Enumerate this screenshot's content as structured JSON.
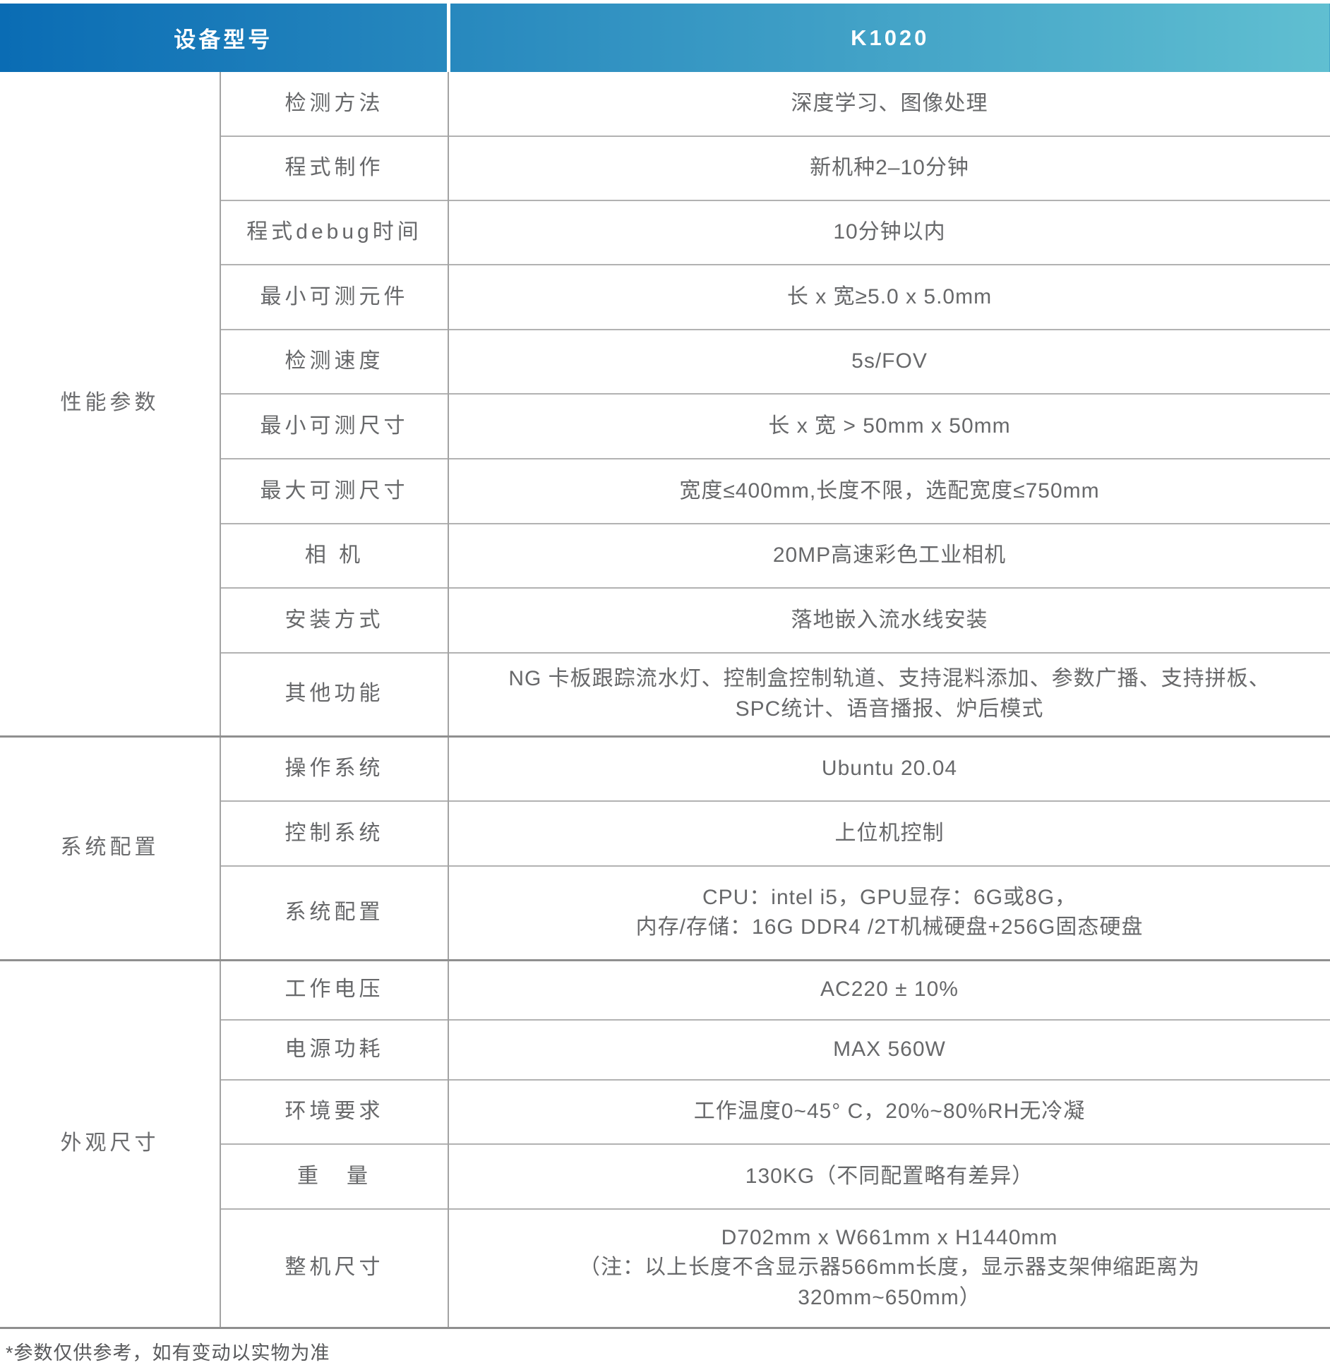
{
  "header": {
    "device_model_label": "设备型号",
    "device_model_value": "K1020"
  },
  "groups": [
    {
      "label": "性能参数",
      "rows": [
        {
          "param": "检测方法",
          "value": "深度学习、图像处理"
        },
        {
          "param": "程式制作",
          "value": "新机种2–10分钟"
        },
        {
          "param": "程式debug时间",
          "value": "10分钟以内"
        },
        {
          "param": "最小可测元件",
          "value": "长 x 宽≥5.0 x 5.0mm"
        },
        {
          "param": "检测速度",
          "value": "5s/FOV"
        },
        {
          "param": "最小可测尺寸",
          "value": "长 x 宽 > 50mm x 50mm"
        },
        {
          "param": "最大可测尺寸",
          "value": "宽度≤400mm,长度不限，选配宽度≤750mm"
        },
        {
          "param": "相 机",
          "value": "20MP高速彩色工业相机"
        },
        {
          "param": "安装方式",
          "value": "落地嵌入流水线安装"
        },
        {
          "param": "其他功能",
          "value": "NG 卡板跟踪流水灯、控制盒控制轨道、支持混料添加、参数广播、支持拼板、\nSPC统计、语音播报、炉后模式"
        }
      ]
    },
    {
      "label": "系统配置",
      "rows": [
        {
          "param": "操作系统",
          "value": "Ubuntu 20.04"
        },
        {
          "param": "控制系统",
          "value": "上位机控制"
        },
        {
          "param": "系统配置",
          "value": "CPU：intel i5，GPU显存：6G或8G，\n内存/存储：16G DDR4 /2T机械硬盘+256G固态硬盘"
        }
      ]
    },
    {
      "label": "外观尺寸",
      "rows": [
        {
          "param": "工作电压",
          "value": "AC220 ± 10%"
        },
        {
          "param": "电源功耗",
          "value": "MAX 560W"
        },
        {
          "param": "环境要求",
          "value": "工作温度0~45° C，20%~80%RH无冷凝"
        },
        {
          "param": "重　量",
          "value": "130KG（不同配置略有差异）"
        },
        {
          "param": "整机尺寸",
          "value": "D702mm x W661mm x H1440mm\n（注：以上长度不含显示器566mm长度，显示器支架伸缩距离为\n320mm~650mm）"
        }
      ]
    }
  ],
  "footnote": "*参数仅供参考，如有变动以实物为准",
  "colors": {
    "header_gradient_start": "#0a6cb4",
    "header_gradient_end": "#60bfd1",
    "row_line": "#b2b2b2",
    "section_line": "#8f8f8f",
    "text": "#67686a"
  }
}
